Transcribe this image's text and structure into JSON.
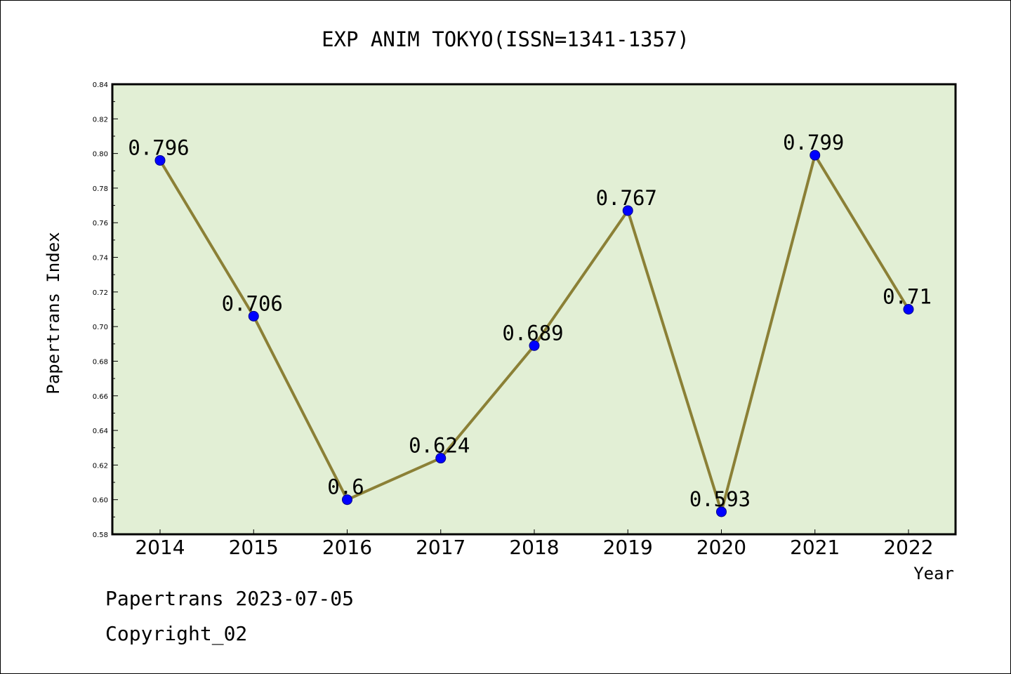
{
  "chart_data": {
    "type": "line",
    "title": "EXP ANIM TOKYO(ISSN=1341-1357)",
    "xlabel": "Year",
    "ylabel": "Papertrans Index",
    "categories": [
      "2014",
      "2015",
      "2016",
      "2017",
      "2018",
      "2019",
      "2020",
      "2021",
      "2022"
    ],
    "series": [
      {
        "values": [
          0.796,
          0.706,
          0.6,
          0.624,
          0.689,
          0.767,
          0.593,
          0.799,
          0.71
        ],
        "data_labels": [
          "0.796",
          "0.706",
          "0.6",
          "0.624",
          "0.689",
          "0.767",
          "0.593",
          "0.799",
          "0.71"
        ]
      }
    ],
    "ylim": [
      0.58,
      0.84
    ],
    "yticks": [
      "0.58",
      "0.60",
      "0.62",
      "0.64",
      "0.66",
      "0.68",
      "0.70",
      "0.72",
      "0.74",
      "0.76",
      "0.78",
      "0.80",
      "0.82",
      "0.84"
    ],
    "grid": false,
    "colors": {
      "plot_background": "#e2efd5",
      "line": "#8b8036",
      "marker": "#0000ff"
    }
  },
  "footer": {
    "line1": "Papertrans 2023-07-05",
    "line2": "Copyright_02"
  }
}
